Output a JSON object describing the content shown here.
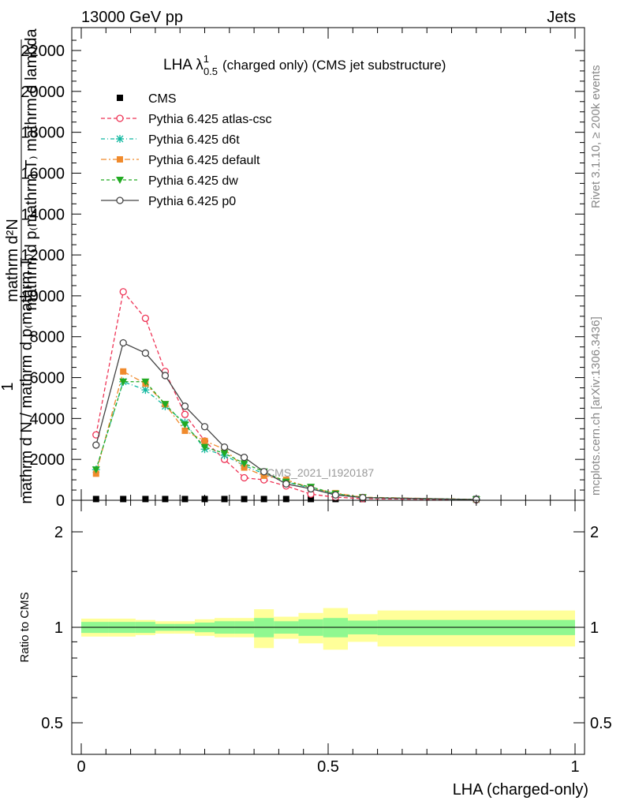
{
  "header": {
    "left": "13000 GeV pp",
    "right": "Jets"
  },
  "side_labels": {
    "rivet": "Rivet 3.1.10, ≥ 200k events",
    "mcplots": "mcplots.cern.ch [arXiv:1306.3436]"
  },
  "watermark": "CMS_2021_I1920187",
  "chart_data": [
    {
      "type": "line",
      "title_main": "LHA λ",
      "title_sup": "1",
      "title_sub": "0.5",
      "title_rest": "(charged only) (CMS jet substructure)",
      "ylabel_lines": [
        "mathrm d²N",
        "mathrm d p₍mathrm T₎ mathrm d lambda",
        "1",
        "mathrm d N / mathrm d p₍mathrm T₎"
      ],
      "xlim": [
        0,
        1
      ],
      "ylim": [
        0,
        23000
      ],
      "y_ticks": [
        0,
        2000,
        4000,
        6000,
        8000,
        10000,
        12000,
        14000,
        16000,
        18000,
        20000,
        22000
      ],
      "y_tick_labels": [
        "0",
        "2000",
        "4000",
        "6000",
        "8000",
        "10000",
        "12000",
        "14000",
        "16000",
        "18000",
        "20000",
        "22000"
      ],
      "legend_position": "top-left",
      "x": [
        0.03,
        0.085,
        0.13,
        0.17,
        0.21,
        0.25,
        0.29,
        0.33,
        0.37,
        0.415,
        0.465,
        0.515,
        0.57,
        0.8
      ],
      "series": [
        {
          "name": "CMS",
          "color": "#000000",
          "marker": "square",
          "dash": "",
          "values": [
            60,
            60,
            60,
            60,
            60,
            60,
            60,
            60,
            60,
            60,
            60,
            60,
            60,
            60
          ]
        },
        {
          "name": "Pythia 6.425 atlas-csc",
          "color": "#ee3355",
          "marker": "open-circle",
          "dash": "5,3",
          "values": [
            3200,
            10200,
            8900,
            6300,
            4200,
            2900,
            2000,
            1100,
            1000,
            700,
            300,
            150,
            80,
            20
          ]
        },
        {
          "name": "Pythia 6.425 d6t",
          "color": "#11b8a0",
          "marker": "star",
          "dash": "5,3,1,3",
          "values": [
            1500,
            5800,
            5400,
            4600,
            3800,
            2500,
            2200,
            1700,
            1300,
            900,
            600,
            300,
            120,
            30
          ]
        },
        {
          "name": "Pythia 6.425 default",
          "color": "#f08a2c",
          "marker": "filled-square",
          "dash": "7,3,2,3",
          "values": [
            1300,
            6300,
            5700,
            4700,
            3400,
            2900,
            2500,
            1600,
            1200,
            1000,
            600,
            350,
            150,
            40
          ]
        },
        {
          "name": "Pythia 6.425 dw",
          "color": "#22aa22",
          "marker": "filled-triangle",
          "dash": "4,3",
          "values": [
            1500,
            5800,
            5800,
            4700,
            3700,
            2600,
            2300,
            1800,
            1400,
            900,
            650,
            320,
            140,
            40
          ]
        },
        {
          "name": "Pythia 6.425 p0",
          "color": "#444444",
          "marker": "open-circle",
          "dash": "",
          "values": [
            2700,
            7700,
            7200,
            6100,
            4600,
            3600,
            2600,
            2100,
            1400,
            800,
            560,
            260,
            130,
            35
          ]
        }
      ]
    },
    {
      "type": "area",
      "ylabel": "Ratio to CMS",
      "xlabel": "LHA (charged-only)",
      "xlim": [
        0,
        1
      ],
      "ylim": [
        0.4,
        2.3
      ],
      "log_y": true,
      "x_ticks": [
        0,
        0.5,
        1
      ],
      "x_tick_labels": [
        "0",
        "0.5",
        "1"
      ],
      "y_ticks": [
        0.5,
        1,
        2
      ],
      "y_tick_labels": [
        "0.5",
        "1",
        "2"
      ],
      "bin_edges": [
        0,
        0.055,
        0.11,
        0.15,
        0.19,
        0.23,
        0.27,
        0.31,
        0.35,
        0.39,
        0.44,
        0.49,
        0.54,
        0.6,
        1.0
      ],
      "bands": [
        {
          "name": "stat",
          "color": "#90f890",
          "lo": [
            0.96,
            0.96,
            0.96,
            0.975,
            0.975,
            0.965,
            0.955,
            0.955,
            0.93,
            0.955,
            0.94,
            0.93,
            0.95,
            0.945
          ],
          "hi": [
            1.04,
            1.04,
            1.04,
            1.025,
            1.025,
            1.035,
            1.045,
            1.045,
            1.07,
            1.045,
            1.06,
            1.07,
            1.05,
            1.055
          ]
        },
        {
          "name": "total",
          "color": "#ffff99",
          "lo": [
            0.935,
            0.935,
            0.945,
            0.955,
            0.955,
            0.94,
            0.93,
            0.93,
            0.86,
            0.92,
            0.89,
            0.85,
            0.9,
            0.87
          ],
          "hi": [
            1.065,
            1.065,
            1.055,
            1.045,
            1.045,
            1.06,
            1.07,
            1.07,
            1.14,
            1.08,
            1.11,
            1.15,
            1.1,
            1.13
          ]
        }
      ],
      "reference_line": 1
    }
  ]
}
